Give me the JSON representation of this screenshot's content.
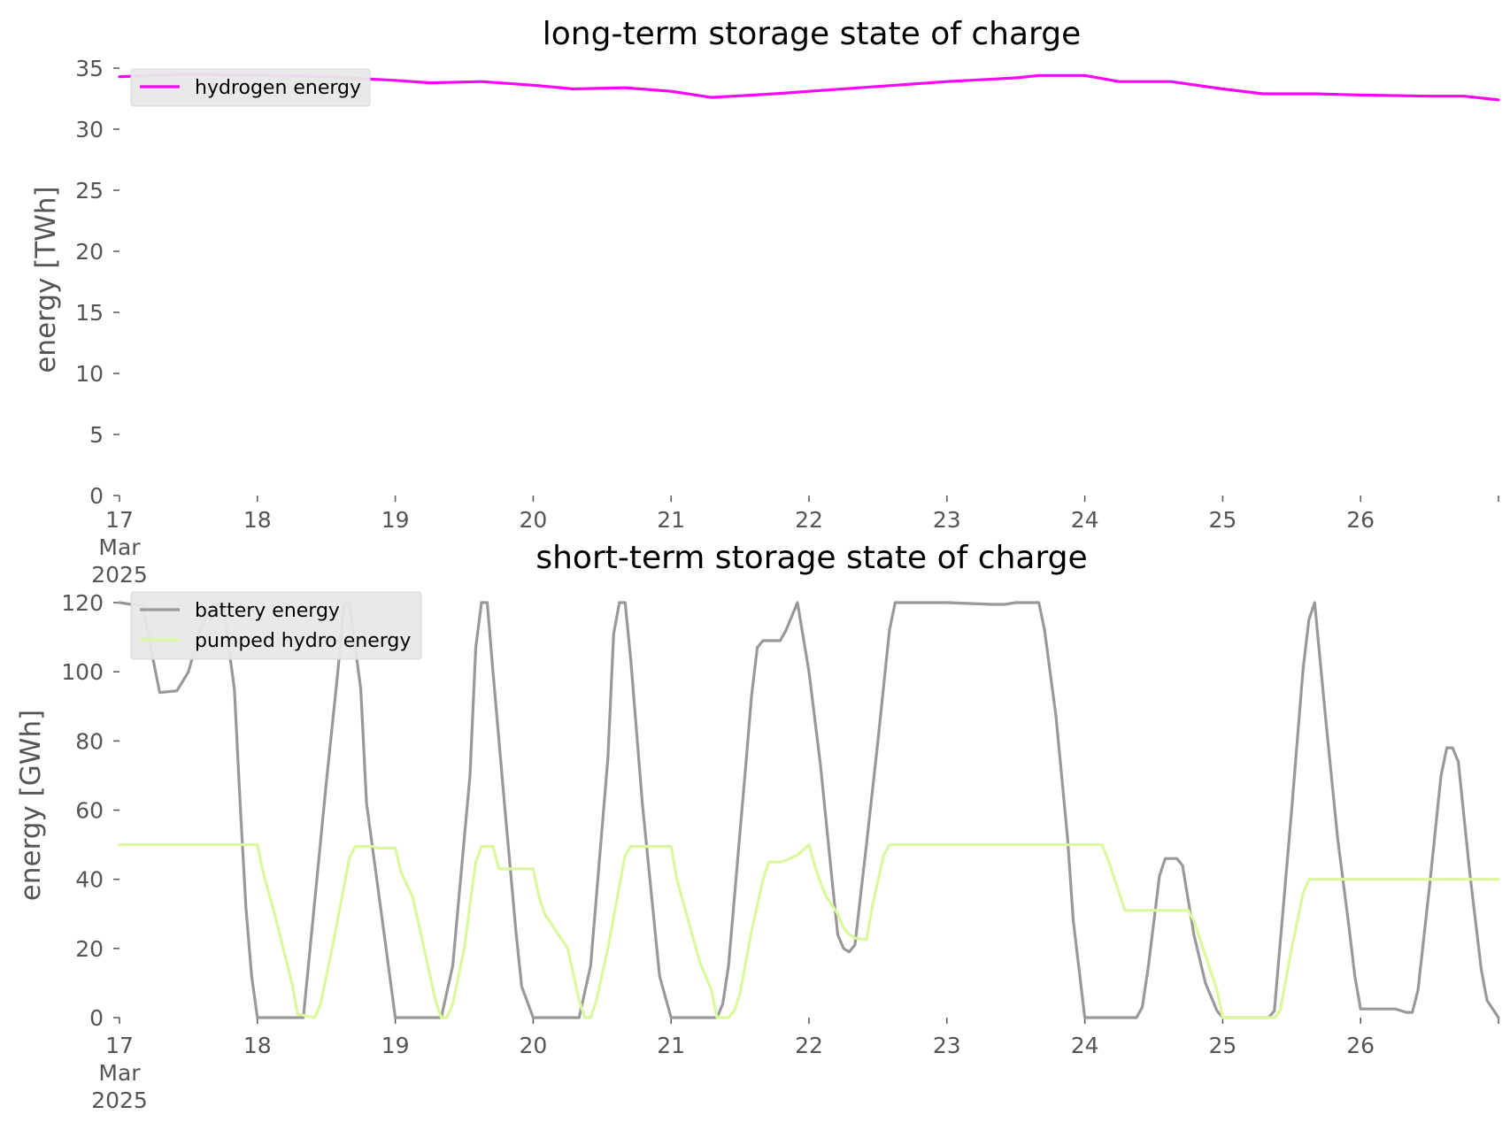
{
  "chart_data": [
    {
      "type": "line",
      "title": "long-term storage state of charge",
      "ylabel": "energy [TWh]",
      "xlabel": "",
      "ylim": [
        0,
        35
      ],
      "yticks": [
        0,
        5,
        10,
        15,
        20,
        25,
        30,
        35
      ],
      "xlim": [
        "2025-03-17",
        "2025-03-27"
      ],
      "xtick_labels": [
        "17\nMar\n2025",
        "18",
        "19",
        "20",
        "21",
        "22",
        "23",
        "24",
        "25",
        "26"
      ],
      "grid": false,
      "legend_position": "top-left",
      "series": [
        {
          "name": "hydrogen energy",
          "color": "#ff00ff",
          "points": [
            [
              "2025-03-17 00:00",
              34.3
            ],
            [
              "2025-03-17 12:00",
              34.5
            ],
            [
              "2025-03-18 00:00",
              34.4
            ],
            [
              "2025-03-18 12:00",
              34.3
            ],
            [
              "2025-03-19 00:00",
              34.0
            ],
            [
              "2025-03-19 06:00",
              33.8
            ],
            [
              "2025-03-19 15:00",
              33.9
            ],
            [
              "2025-03-20 00:00",
              33.6
            ],
            [
              "2025-03-20 07:00",
              33.3
            ],
            [
              "2025-03-20 16:00",
              33.4
            ],
            [
              "2025-03-21 00:00",
              33.1
            ],
            [
              "2025-03-21 07:00",
              32.6
            ],
            [
              "2025-03-21 18:00",
              32.9
            ],
            [
              "2025-03-22 00:00",
              33.1
            ],
            [
              "2025-03-22 12:00",
              33.5
            ],
            [
              "2025-03-23 00:00",
              33.9
            ],
            [
              "2025-03-23 12:00",
              34.2
            ],
            [
              "2025-03-23 16:00",
              34.4
            ],
            [
              "2025-03-24 00:00",
              34.4
            ],
            [
              "2025-03-24 06:00",
              33.9
            ],
            [
              "2025-03-24 15:00",
              33.9
            ],
            [
              "2025-03-25 00:00",
              33.3
            ],
            [
              "2025-03-25 07:00",
              32.9
            ],
            [
              "2025-03-25 16:00",
              32.9
            ],
            [
              "2025-03-26 00:00",
              32.8
            ],
            [
              "2025-03-26 12:00",
              32.7
            ],
            [
              "2025-03-26 18:00",
              32.7
            ],
            [
              "2025-03-27 00:00",
              32.4
            ]
          ]
        }
      ]
    },
    {
      "type": "line",
      "title": "short-term storage state of charge",
      "ylabel": "energy [GWh]",
      "xlabel": "",
      "ylim": [
        0,
        120
      ],
      "yticks": [
        0,
        20,
        40,
        60,
        80,
        100,
        120
      ],
      "xlim": [
        "2025-03-17",
        "2025-03-27"
      ],
      "xtick_labels": [
        "17\nMar\n2025",
        "18",
        "19",
        "20",
        "21",
        "22",
        "23",
        "24",
        "25",
        "26"
      ],
      "grid": false,
      "legend_position": "top-left",
      "series": [
        {
          "name": "battery energy",
          "color": "#999999",
          "points": [
            [
              "2025-03-17 00:00",
              120
            ],
            [
              "2025-03-17 04:00",
              119
            ],
            [
              "2025-03-17 07:00",
              94
            ],
            [
              "2025-03-17 10:00",
              94.5
            ],
            [
              "2025-03-17 12:00",
              100
            ],
            [
              "2025-03-17 14:00",
              112
            ],
            [
              "2025-03-17 16:00",
              119
            ],
            [
              "2025-03-17 18:00",
              120
            ],
            [
              "2025-03-17 20:00",
              95
            ],
            [
              "2025-03-17 21:00",
              62
            ],
            [
              "2025-03-17 22:00",
              32
            ],
            [
              "2025-03-17 23:00",
              12
            ],
            [
              "2025-03-18 00:00",
              0
            ],
            [
              "2025-03-18 08:00",
              0
            ],
            [
              "2025-03-18 12:00",
              68
            ],
            [
              "2025-03-18 14:00",
              100
            ],
            [
              "2025-03-18 15:00",
              119
            ],
            [
              "2025-03-18 16:00",
              120
            ],
            [
              "2025-03-18 18:00",
              95
            ],
            [
              "2025-03-18 19:00",
              62
            ],
            [
              "2025-03-18 22:00",
              25
            ],
            [
              "2025-03-19 00:00",
              0
            ],
            [
              "2025-03-19 08:00",
              0
            ],
            [
              "2025-03-19 10:00",
              15
            ],
            [
              "2025-03-19 13:00",
              70
            ],
            [
              "2025-03-19 14:00",
              107
            ],
            [
              "2025-03-19 15:00",
              120
            ],
            [
              "2025-03-19 16:00",
              120
            ],
            [
              "2025-03-19 17:00",
              100
            ],
            [
              "2025-03-19 19:00",
              62
            ],
            [
              "2025-03-19 21:00",
              25
            ],
            [
              "2025-03-19 22:00",
              9
            ],
            [
              "2025-03-20 00:00",
              0
            ],
            [
              "2025-03-20 08:00",
              0
            ],
            [
              "2025-03-20 10:00",
              15
            ],
            [
              "2025-03-20 13:00",
              75
            ],
            [
              "2025-03-20 14:00",
              111
            ],
            [
              "2025-03-20 15:00",
              120
            ],
            [
              "2025-03-20 16:00",
              120
            ],
            [
              "2025-03-20 17:00",
              103
            ],
            [
              "2025-03-20 19:00",
              62
            ],
            [
              "2025-03-20 22:00",
              12
            ],
            [
              "2025-03-21 00:00",
              0
            ],
            [
              "2025-03-21 08:00",
              0
            ],
            [
              "2025-03-21 09:00",
              4
            ],
            [
              "2025-03-21 10:00",
              15
            ],
            [
              "2025-03-21 13:00",
              73
            ],
            [
              "2025-03-21 14:00",
              93
            ],
            [
              "2025-03-21 15:00",
              107
            ],
            [
              "2025-03-21 16:00",
              109
            ],
            [
              "2025-03-21 19:00",
              109
            ],
            [
              "2025-03-21 20:00",
              112
            ],
            [
              "2025-03-21 22:00",
              120
            ],
            [
              "2025-03-22 00:00",
              100
            ],
            [
              "2025-03-22 02:00",
              73
            ],
            [
              "2025-03-22 04:00",
              40
            ],
            [
              "2025-03-22 05:00",
              24
            ],
            [
              "2025-03-22 06:00",
              20
            ],
            [
              "2025-03-22 07:00",
              19
            ],
            [
              "2025-03-22 08:00",
              21
            ],
            [
              "2025-03-22 10:00",
              50
            ],
            [
              "2025-03-22 12:00",
              80
            ],
            [
              "2025-03-22 14:00",
              112
            ],
            [
              "2025-03-22 15:00",
              120
            ],
            [
              "2025-03-23 00:00",
              120
            ],
            [
              "2025-03-23 08:00",
              119.5
            ],
            [
              "2025-03-23 10:00",
              119.5
            ],
            [
              "2025-03-23 12:00",
              120
            ],
            [
              "2025-03-23 16:00",
              120
            ],
            [
              "2025-03-23 17:00",
              112
            ],
            [
              "2025-03-23 19:00",
              87
            ],
            [
              "2025-03-23 21:00",
              52
            ],
            [
              "2025-03-23 22:00",
              28
            ],
            [
              "2025-03-24 00:00",
              0
            ],
            [
              "2025-03-24 09:00",
              0
            ],
            [
              "2025-03-24 10:00",
              3
            ],
            [
              "2025-03-24 11:00",
              14
            ],
            [
              "2025-03-24 13:00",
              41
            ],
            [
              "2025-03-24 14:00",
              46
            ],
            [
              "2025-03-24 16:00",
              46
            ],
            [
              "2025-03-24 17:00",
              44
            ],
            [
              "2025-03-24 19:00",
              24
            ],
            [
              "2025-03-24 21:00",
              10
            ],
            [
              "2025-03-24 23:00",
              2
            ],
            [
              "2025-03-25 00:00",
              0
            ],
            [
              "2025-03-25 08:00",
              0
            ],
            [
              "2025-03-25 09:00",
              2
            ],
            [
              "2025-03-25 12:00",
              60
            ],
            [
              "2025-03-25 14:00",
              101
            ],
            [
              "2025-03-25 15:00",
              115
            ],
            [
              "2025-03-25 16:00",
              120
            ],
            [
              "2025-03-25 18:00",
              85
            ],
            [
              "2025-03-25 20:00",
              52
            ],
            [
              "2025-03-25 22:00",
              26
            ],
            [
              "2025-03-25 23:00",
              12
            ],
            [
              "2025-03-26 00:00",
              2.5
            ],
            [
              "2025-03-26 06:00",
              2.5
            ],
            [
              "2025-03-26 08:00",
              1.5
            ],
            [
              "2025-03-26 09:00",
              1.5
            ],
            [
              "2025-03-26 10:00",
              8
            ],
            [
              "2025-03-26 12:00",
              38
            ],
            [
              "2025-03-26 14:00",
              70
            ],
            [
              "2025-03-26 15:00",
              78
            ],
            [
              "2025-03-26 16:00",
              78
            ],
            [
              "2025-03-26 17:00",
              74
            ],
            [
              "2025-03-26 19:00",
              42
            ],
            [
              "2025-03-26 21:00",
              14
            ],
            [
              "2025-03-26 22:00",
              5
            ],
            [
              "2025-03-27 00:00",
              0
            ]
          ]
        },
        {
          "name": "pumped hydro energy",
          "color": "#d9f99d",
          "points": [
            [
              "2025-03-17 00:00",
              50
            ],
            [
              "2025-03-18 00:00",
              50
            ],
            [
              "2025-03-18 01:00",
              42
            ],
            [
              "2025-03-18 03:00",
              30
            ],
            [
              "2025-03-18 06:00",
              10
            ],
            [
              "2025-03-18 07:00",
              1
            ],
            [
              "2025-03-18 10:00",
              0
            ],
            [
              "2025-03-18 11:00",
              4
            ],
            [
              "2025-03-18 13:00",
              20
            ],
            [
              "2025-03-18 16:00",
              46
            ],
            [
              "2025-03-18 17:00",
              49.5
            ],
            [
              "2025-03-18 20:00",
              49.5
            ],
            [
              "2025-03-18 21:00",
              49
            ],
            [
              "2025-03-19 00:00",
              49
            ],
            [
              "2025-03-19 01:00",
              42
            ],
            [
              "2025-03-19 03:00",
              35
            ],
            [
              "2025-03-19 05:00",
              20
            ],
            [
              "2025-03-19 07:00",
              5
            ],
            [
              "2025-03-19 08:00",
              0
            ],
            [
              "2025-03-19 09:00",
              0
            ],
            [
              "2025-03-19 10:00",
              4
            ],
            [
              "2025-03-19 12:00",
              20
            ],
            [
              "2025-03-19 14:00",
              45
            ],
            [
              "2025-03-19 15:00",
              49.5
            ],
            [
              "2025-03-19 17:00",
              49.5
            ],
            [
              "2025-03-19 18:00",
              43
            ],
            [
              "2025-03-20 00:00",
              43
            ],
            [
              "2025-03-20 01:00",
              35
            ],
            [
              "2025-03-20 02:00",
              30
            ],
            [
              "2025-03-20 06:00",
              20
            ],
            [
              "2025-03-20 08:00",
              5
            ],
            [
              "2025-03-20 09:00",
              0
            ],
            [
              "2025-03-20 10:00",
              0
            ],
            [
              "2025-03-20 11:00",
              5
            ],
            [
              "2025-03-20 13:00",
              20
            ],
            [
              "2025-03-20 16:00",
              47
            ],
            [
              "2025-03-20 17:00",
              49.5
            ],
            [
              "2025-03-21 00:00",
              49.5
            ],
            [
              "2025-03-21 01:00",
              40
            ],
            [
              "2025-03-21 03:00",
              28
            ],
            [
              "2025-03-21 05:00",
              16
            ],
            [
              "2025-03-21 07:00",
              8
            ],
            [
              "2025-03-21 08:00",
              0
            ],
            [
              "2025-03-21 10:00",
              0
            ],
            [
              "2025-03-21 11:00",
              2
            ],
            [
              "2025-03-21 12:00",
              7
            ],
            [
              "2025-03-21 14:00",
              25
            ],
            [
              "2025-03-21 16:00",
              40
            ],
            [
              "2025-03-21 17:00",
              45
            ],
            [
              "2025-03-21 19:00",
              45
            ],
            [
              "2025-03-21 20:00",
              45.5
            ],
            [
              "2025-03-21 22:00",
              47
            ],
            [
              "2025-03-22 00:00",
              50
            ],
            [
              "2025-03-22 01:00",
              44
            ],
            [
              "2025-03-22 02:00",
              39
            ],
            [
              "2025-03-22 03:00",
              35
            ],
            [
              "2025-03-22 05:00",
              30
            ],
            [
              "2025-03-22 06:00",
              26
            ],
            [
              "2025-03-22 07:00",
              24
            ],
            [
              "2025-03-22 08:00",
              23
            ],
            [
              "2025-03-22 10:00",
              22.5
            ],
            [
              "2025-03-22 11:00",
              32
            ],
            [
              "2025-03-22 13:00",
              47
            ],
            [
              "2025-03-22 14:00",
              50
            ],
            [
              "2025-03-24 00:00",
              50
            ],
            [
              "2025-03-24 03:00",
              50
            ],
            [
              "2025-03-24 04:00",
              46
            ],
            [
              "2025-03-24 06:00",
              36
            ],
            [
              "2025-03-24 07:00",
              31
            ],
            [
              "2025-03-24 18:00",
              31
            ],
            [
              "2025-03-24 19:00",
              28
            ],
            [
              "2025-03-24 21:00",
              18
            ],
            [
              "2025-03-24 23:00",
              8
            ],
            [
              "2025-03-25 00:00",
              0
            ],
            [
              "2025-03-25 09:00",
              0
            ],
            [
              "2025-03-25 10:00",
              2
            ],
            [
              "2025-03-25 12:00",
              20
            ],
            [
              "2025-03-25 14:00",
              36
            ],
            [
              "2025-03-25 15:00",
              40
            ],
            [
              "2025-03-27 00:00",
              40
            ]
          ]
        }
      ]
    }
  ]
}
